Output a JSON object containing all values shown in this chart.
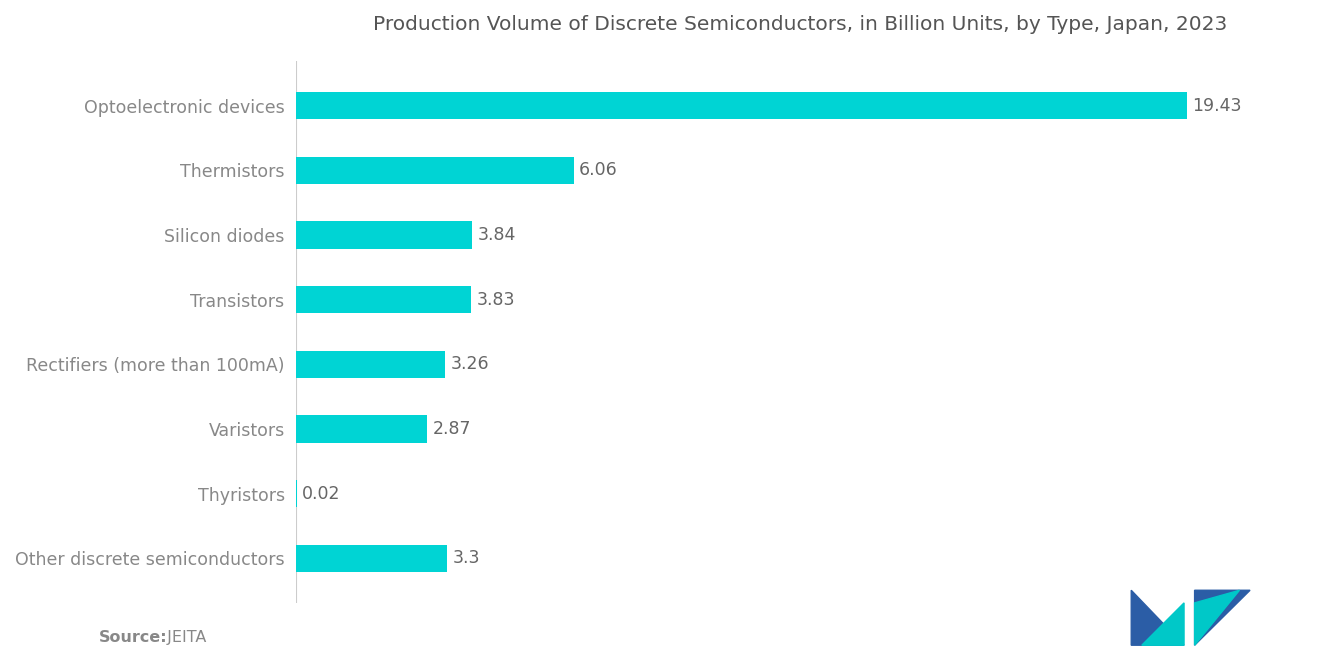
{
  "title": "Production Volume of Discrete Semiconductors, in Billion Units, by Type, Japan, 2023",
  "categories": [
    "Other discrete semiconductors",
    "Thyristors",
    "Varistors",
    "Rectifiers (more than 100mA)",
    "Transistors",
    "Silicon diodes",
    "Thermistors",
    "Optoelectronic devices"
  ],
  "values": [
    3.3,
    0.02,
    2.87,
    3.26,
    3.83,
    3.84,
    6.06,
    19.43
  ],
  "bar_color": "#00D4D4",
  "label_color": "#888888",
  "value_color": "#666666",
  "title_color": "#555555",
  "background_color": "#ffffff",
  "source_bold": "Source:",
  "source_normal": "  JEITA",
  "bar_height": 0.42,
  "xlim": [
    0,
    22
  ],
  "title_fontsize": 14.5,
  "label_fontsize": 12.5,
  "value_fontsize": 12.5,
  "source_fontsize": 11.5,
  "logo_left_color": "#2B5DA6",
  "logo_right_color": "#00C8C8"
}
